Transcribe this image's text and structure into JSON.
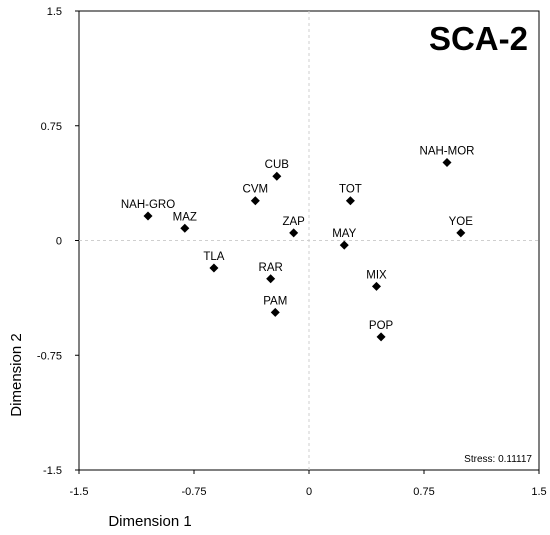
{
  "chart_data": {
    "type": "scatter",
    "title": "SCA-2",
    "xlabel": "Dimension 1",
    "ylabel": "Dimension 2",
    "xlim": [
      -1.5,
      1.5
    ],
    "ylim": [
      -1.5,
      1.5
    ],
    "xticks": [
      "-1.5",
      "-0.75",
      "0",
      "0.75",
      "1.5"
    ],
    "yticks": [
      "1.5",
      "0.75",
      "0",
      "-0.75",
      "-1.5"
    ],
    "reference_lines": [
      0,
      0
    ],
    "grid": false,
    "stress_label": "Stress: 0.11117",
    "points": [
      {
        "label": "NAH-GRO",
        "x": -1.05,
        "y": 0.16
      },
      {
        "label": "MAZ",
        "x": -0.81,
        "y": 0.08
      },
      {
        "label": "TLA",
        "x": -0.62,
        "y": -0.18
      },
      {
        "label": "CVM",
        "x": -0.35,
        "y": 0.26
      },
      {
        "label": "CUB",
        "x": -0.21,
        "y": 0.42
      },
      {
        "label": "RAR",
        "x": -0.25,
        "y": -0.25
      },
      {
        "label": "PAM",
        "x": -0.22,
        "y": -0.47
      },
      {
        "label": "ZAP",
        "x": -0.1,
        "y": 0.05
      },
      {
        "label": "MAY",
        "x": 0.23,
        "y": -0.03
      },
      {
        "label": "TOT",
        "x": 0.27,
        "y": 0.26
      },
      {
        "label": "MIX",
        "x": 0.44,
        "y": -0.3
      },
      {
        "label": "POP",
        "x": 0.47,
        "y": -0.63
      },
      {
        "label": "NAH-MOR",
        "x": 0.9,
        "y": 0.51
      },
      {
        "label": "YOE",
        "x": 0.99,
        "y": 0.05
      }
    ]
  }
}
